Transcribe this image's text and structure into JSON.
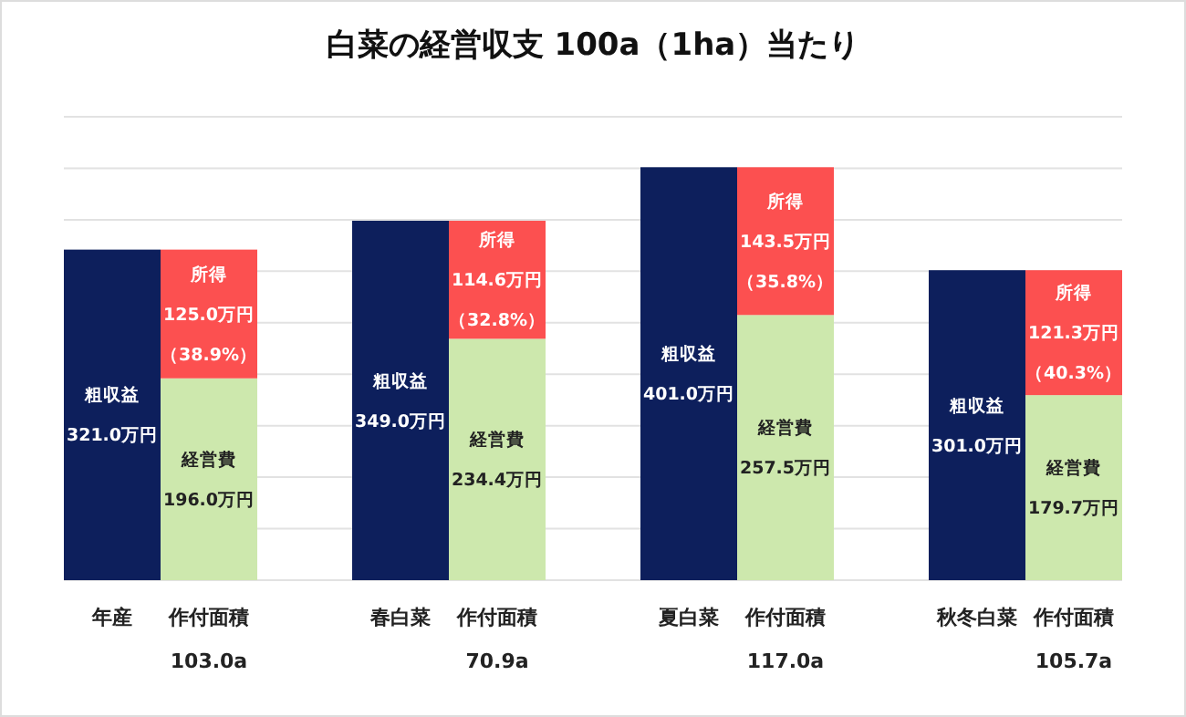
{
  "chart_data": {
    "type": "bar",
    "title": "白菜の経営収支 100a（1ha）当たり",
    "stacked": true,
    "categories": [
      "年産",
      "作付面積\n103.0a",
      "春白菜",
      "作付面積\n70.9a",
      "夏白菜",
      "作付面積\n117.0a",
      "秋冬白菜",
      "作付面積\n105.7a"
    ],
    "series": [
      {
        "name": "粗収益",
        "color": "#0d1f5c",
        "values": [
          321.0,
          null,
          349.0,
          null,
          401.0,
          null,
          301.0,
          null
        ],
        "value_labels": [
          "321.0万円",
          null,
          "349.0万円",
          null,
          "401.0万円",
          null,
          "301.0万円",
          null
        ]
      },
      {
        "name": "経営費",
        "color": "#cde8ad",
        "values": [
          null,
          196.0,
          null,
          234.4,
          null,
          257.5,
          null,
          179.7
        ],
        "value_labels": [
          null,
          "196.0万円",
          null,
          "234.4万円",
          null,
          "257.5万円",
          null,
          "179.7万円"
        ]
      },
      {
        "name": "所得",
        "color": "#fc5050",
        "values": [
          null,
          125.0,
          null,
          114.6,
          null,
          143.5,
          null,
          121.3
        ],
        "value_labels": [
          null,
          "125.0万円（38.9%）",
          null,
          "114.6万円（32.8%）",
          null,
          "143.5万円（35.8%）",
          null,
          "121.3万円（40.3%）"
        ]
      }
    ],
    "ylim": [
      0,
      450
    ],
    "yticks": [
      {
        "value": 0,
        "label": null
      },
      {
        "value": 50,
        "label": null
      },
      {
        "value": 100,
        "label": null
      },
      {
        "value": 150,
        "label": null
      },
      {
        "value": 200,
        "label": null
      },
      {
        "value": 250,
        "label": null
      },
      {
        "value": 300,
        "label": null
      },
      {
        "value": 350,
        "label": null
      },
      {
        "value": 400,
        "label": null
      },
      {
        "value": 450,
        "label": null
      }
    ],
    "grid": "y",
    "tick_labels": "x"
  }
}
